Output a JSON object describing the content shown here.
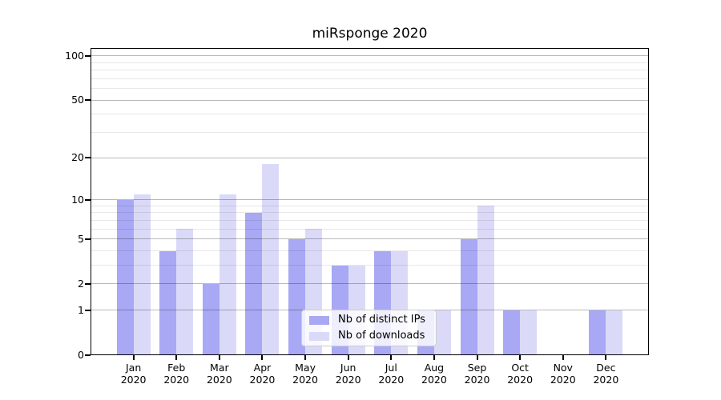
{
  "title": "miRsponge 2020",
  "chart_data": {
    "type": "bar",
    "title": "miRsponge 2020",
    "categories": [
      "Jan 2020",
      "Feb 2020",
      "Mar 2020",
      "Apr 2020",
      "May 2020",
      "Jun 2020",
      "Jul 2020",
      "Aug 2020",
      "Sep 2020",
      "Oct 2020",
      "Nov 2020",
      "Dec 2020"
    ],
    "series": [
      {
        "name": "Nb of distinct IPs",
        "color": "#a8a8f4",
        "values": [
          10,
          4,
          2,
          8,
          5,
          3,
          4,
          1,
          5,
          1,
          0,
          1
        ]
      },
      {
        "name": "Nb of downloads",
        "color": "#dadaf8",
        "values": [
          11,
          6,
          11,
          18,
          6,
          3,
          4,
          1,
          9,
          1,
          0,
          1
        ]
      }
    ],
    "xlabel": "",
    "ylabel": "",
    "yscale": "log1p",
    "ylim": [
      0,
      113
    ],
    "yticks": [
      0,
      1,
      2,
      5,
      10,
      20,
      50,
      100
    ],
    "yticks_minor": [
      3,
      4,
      6,
      7,
      8,
      9,
      30,
      40,
      60,
      70,
      80,
      90
    ],
    "grid": true,
    "legend_position": "lower center"
  }
}
